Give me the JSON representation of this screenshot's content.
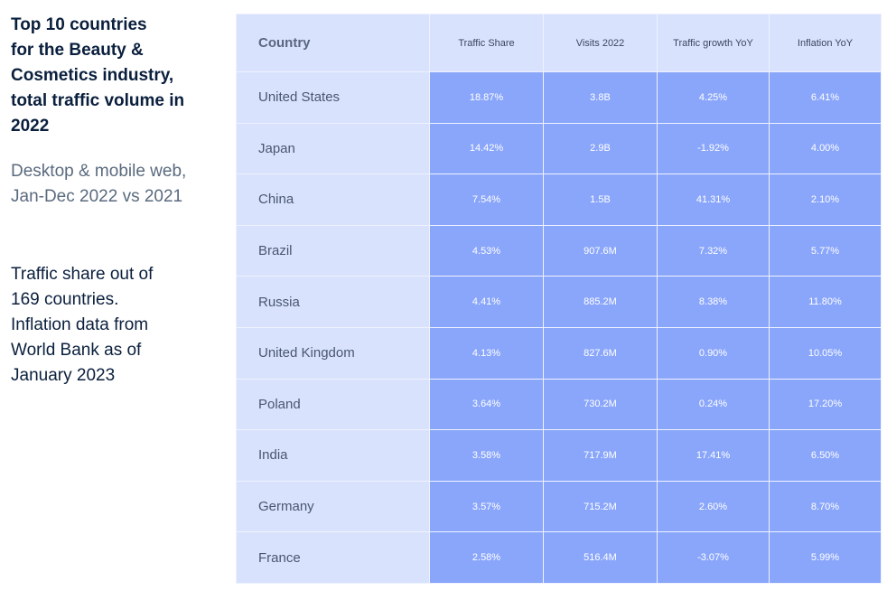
{
  "left_panel": {
    "title": "Top 10 countries\nfor the Beauty &\nCosmetics industry,\ntotal traffic volume in\n2022",
    "subtitle": "Desktop & mobile web,\nJan-Dec 2022 vs 2021",
    "note": "Traffic share out of\n169 countries.\nInflation data from\nWorld Bank as of\nJanuary 2023"
  },
  "chart_data": {
    "type": "table",
    "columns": [
      "Country",
      "Traffic Share",
      "Visits 2022",
      "Traffic growth YoY",
      "Inflation YoY"
    ],
    "rows": [
      [
        "United States",
        "18.87%",
        "3.8B",
        "4.25%",
        "6.41%"
      ],
      [
        "Japan",
        "14.42%",
        "2.9B",
        "-1.92%",
        "4.00%"
      ],
      [
        "China",
        "7.54%",
        "1.5B",
        "41.31%",
        "2.10%"
      ],
      [
        "Brazil",
        "4.53%",
        "907.6M",
        "7.32%",
        "5.77%"
      ],
      [
        "Russia",
        "4.41%",
        "885.2M",
        "8.38%",
        "11.80%"
      ],
      [
        "United Kingdom",
        "4.13%",
        "827.6M",
        "0.90%",
        "10.05%"
      ],
      [
        "Poland",
        "3.64%",
        "730.2M",
        "0.24%",
        "17.20%"
      ],
      [
        "India",
        "3.58%",
        "717.9M",
        "17.41%",
        "6.50%"
      ],
      [
        "Germany",
        "3.57%",
        "715.2M",
        "2.60%",
        "8.70%"
      ],
      [
        "France",
        "2.58%",
        "516.4M",
        "-3.07%",
        "5.99%"
      ]
    ]
  },
  "colors": {
    "header_bg": "#d8e2fd",
    "value_cell_bg": "#8aa6fb",
    "title_text": "#0a1f3d"
  }
}
